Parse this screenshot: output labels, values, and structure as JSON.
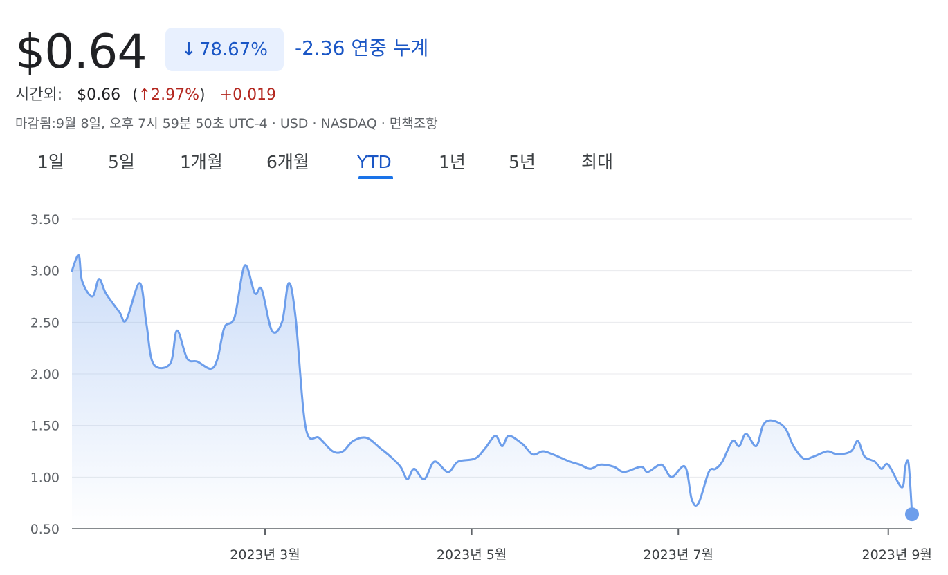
{
  "quote": {
    "price": "$0.64",
    "change_pct": "78.67%",
    "change_pct_icon": "arrow-down-icon",
    "change_abs": "-2.36 연중 누계"
  },
  "after_hours": {
    "label": "시간외:",
    "price": "$0.66",
    "open_paren": "(",
    "up_icon": "↑",
    "pct": "2.97%",
    "close_paren": ")",
    "abs": "+0.019"
  },
  "closed_line": "마감됨:9월 8일, 오후 7시 59분 50초 UTC-4 · USD · NASDAQ · 면책조항",
  "tabs": [
    "1일",
    "5일",
    "1개월",
    "6개월",
    "YTD",
    "1년",
    "5년",
    "최대"
  ],
  "active_tab": "YTD",
  "colors": {
    "line": "#6d9eeb",
    "accent": "#1a56c5",
    "negative": "#b3261e",
    "grid": "#e8eaed"
  },
  "chart_data": {
    "type": "area",
    "x_axis": "date",
    "ylim": [
      0.5,
      3.5
    ],
    "yticks": [
      "3.50",
      "3.00",
      "2.50",
      "2.00",
      "1.50",
      "1.00",
      "0.50"
    ],
    "ytick_values": [
      3.5,
      3.0,
      2.5,
      2.0,
      1.5,
      1.0,
      0.5
    ],
    "xlim": [
      "2023-01-03",
      "2023-09-08"
    ],
    "xticks": [
      {
        "label": "2023년 3월",
        "date": "2023-03-01"
      },
      {
        "label": "2023년 5월",
        "date": "2023-05-01"
      },
      {
        "label": "2023년 7월",
        "date": "2023-07-01"
      },
      {
        "label": "2023년 9월",
        "date": "2023-09-01"
      }
    ],
    "grid": true,
    "last_point": {
      "date": "2023-09-08",
      "value": 0.64
    },
    "series": [
      {
        "points": [
          [
            "2023-01-03",
            3.0
          ],
          [
            "2023-01-05",
            3.15
          ],
          [
            "2023-01-06",
            2.9
          ],
          [
            "2023-01-09",
            2.75
          ],
          [
            "2023-01-11",
            2.92
          ],
          [
            "2023-01-13",
            2.78
          ],
          [
            "2023-01-17",
            2.6
          ],
          [
            "2023-01-19",
            2.52
          ],
          [
            "2023-01-23",
            2.88
          ],
          [
            "2023-01-25",
            2.48
          ],
          [
            "2023-01-27",
            2.1
          ],
          [
            "2023-02-01",
            2.1
          ],
          [
            "2023-02-03",
            2.42
          ],
          [
            "2023-02-06",
            2.15
          ],
          [
            "2023-02-09",
            2.12
          ],
          [
            "2023-02-13",
            2.05
          ],
          [
            "2023-02-15",
            2.15
          ],
          [
            "2023-02-17",
            2.45
          ],
          [
            "2023-02-20",
            2.55
          ],
          [
            "2023-02-23",
            3.05
          ],
          [
            "2023-02-26",
            2.78
          ],
          [
            "2023-02-28",
            2.82
          ],
          [
            "2023-03-03",
            2.42
          ],
          [
            "2023-03-06",
            2.5
          ],
          [
            "2023-03-08",
            2.88
          ],
          [
            "2023-03-10",
            2.55
          ],
          [
            "2023-03-13",
            1.48
          ],
          [
            "2023-03-17",
            1.38
          ],
          [
            "2023-03-21",
            1.25
          ],
          [
            "2023-03-24",
            1.25
          ],
          [
            "2023-03-27",
            1.35
          ],
          [
            "2023-03-31",
            1.38
          ],
          [
            "2023-04-04",
            1.28
          ],
          [
            "2023-04-07",
            1.2
          ],
          [
            "2023-04-10",
            1.1
          ],
          [
            "2023-04-12",
            0.98
          ],
          [
            "2023-04-14",
            1.08
          ],
          [
            "2023-04-17",
            0.98
          ],
          [
            "2023-04-20",
            1.15
          ],
          [
            "2023-04-24",
            1.05
          ],
          [
            "2023-04-27",
            1.15
          ],
          [
            "2023-05-02",
            1.18
          ],
          [
            "2023-05-05",
            1.28
          ],
          [
            "2023-05-08",
            1.4
          ],
          [
            "2023-05-10",
            1.3
          ],
          [
            "2023-05-12",
            1.4
          ],
          [
            "2023-05-16",
            1.32
          ],
          [
            "2023-05-19",
            1.22
          ],
          [
            "2023-05-22",
            1.25
          ],
          [
            "2023-05-25",
            1.22
          ],
          [
            "2023-05-30",
            1.15
          ],
          [
            "2023-06-02",
            1.12
          ],
          [
            "2023-06-05",
            1.08
          ],
          [
            "2023-06-08",
            1.12
          ],
          [
            "2023-06-12",
            1.1
          ],
          [
            "2023-06-15",
            1.05
          ],
          [
            "2023-06-20",
            1.1
          ],
          [
            "2023-06-22",
            1.05
          ],
          [
            "2023-06-26",
            1.12
          ],
          [
            "2023-06-29",
            1.0
          ],
          [
            "2023-07-03",
            1.1
          ],
          [
            "2023-07-05",
            0.78
          ],
          [
            "2023-07-07",
            0.75
          ],
          [
            "2023-07-10",
            1.05
          ],
          [
            "2023-07-12",
            1.08
          ],
          [
            "2023-07-14",
            1.15
          ],
          [
            "2023-07-17",
            1.35
          ],
          [
            "2023-07-19",
            1.3
          ],
          [
            "2023-07-21",
            1.42
          ],
          [
            "2023-07-24",
            1.3
          ],
          [
            "2023-07-26",
            1.5
          ],
          [
            "2023-07-28",
            1.55
          ],
          [
            "2023-07-31",
            1.52
          ],
          [
            "2023-08-02",
            1.45
          ],
          [
            "2023-08-04",
            1.3
          ],
          [
            "2023-08-07",
            1.18
          ],
          [
            "2023-08-10",
            1.2
          ],
          [
            "2023-08-14",
            1.25
          ],
          [
            "2023-08-17",
            1.22
          ],
          [
            "2023-08-21",
            1.25
          ],
          [
            "2023-08-23",
            1.35
          ],
          [
            "2023-08-25",
            1.2
          ],
          [
            "2023-08-28",
            1.15
          ],
          [
            "2023-08-30",
            1.08
          ],
          [
            "2023-09-01",
            1.12
          ],
          [
            "2023-09-05",
            0.9
          ],
          [
            "2023-09-06",
            1.1
          ],
          [
            "2023-09-07",
            1.13
          ],
          [
            "2023-09-08",
            0.64
          ]
        ]
      }
    ]
  }
}
